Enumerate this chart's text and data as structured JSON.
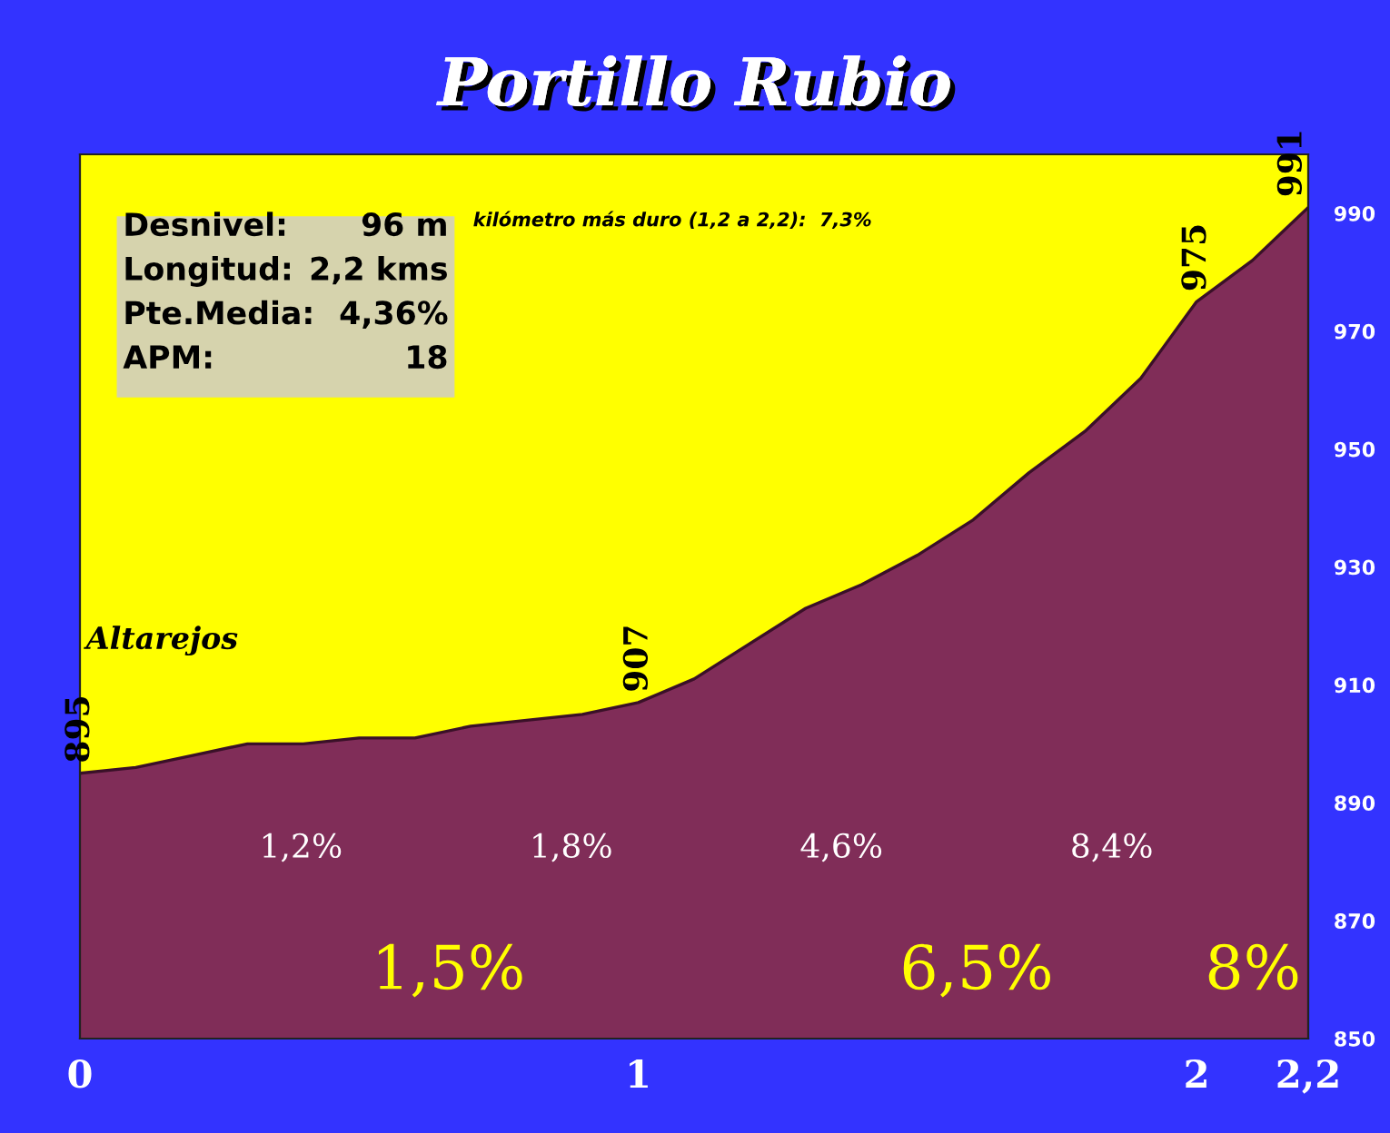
{
  "chart_data": {
    "type": "area",
    "title": "Portillo Rubio",
    "x": [
      0,
      0.1,
      0.2,
      0.3,
      0.4,
      0.5,
      0.6,
      0.7,
      0.8,
      0.9,
      1.0,
      1.1,
      1.2,
      1.3,
      1.4,
      1.5,
      1.6,
      1.7,
      1.8,
      1.9,
      2.0,
      2.1,
      2.2
    ],
    "series": [
      {
        "color": "#802d58",
        "values": [
          895,
          896,
          898,
          900,
          900,
          901,
          901,
          903,
          904,
          905,
          907,
          911,
          917,
          923,
          927,
          932,
          938,
          946,
          953,
          962,
          975,
          982,
          991
        ],
        "value_labels": [
          "895",
          null,
          null,
          null,
          null,
          null,
          null,
          null,
          null,
          null,
          "907",
          null,
          null,
          null,
          null,
          null,
          null,
          null,
          null,
          null,
          "975",
          null,
          "991"
        ]
      }
    ],
    "xlim": [
      0,
      2.2
    ],
    "ylim": [
      850,
      1000
    ],
    "xticks": [
      0,
      1,
      2,
      {
        "value": 2.2,
        "label": "2,2"
      }
    ],
    "yticks": [
      850,
      870,
      890,
      910,
      930,
      950,
      970,
      990
    ],
    "grid": false,
    "legend": false,
    "annotations": [
      "Desnivel: 96 m",
      "Longitud: 2,2 kms",
      "Pte.Media: 4,36%",
      "APM: 18",
      "kilómetro más duro (1,2 a 2,2):  7,3%",
      "Altarejos",
      "1,2%",
      "1,8%",
      "4,6%",
      "8,4%",
      "1,5%",
      "6,5%",
      "8%"
    ]
  }
}
